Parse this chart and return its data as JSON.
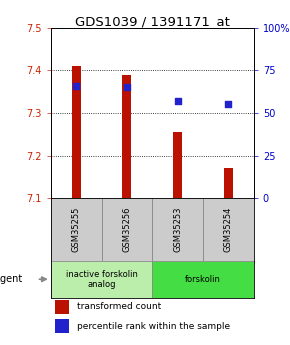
{
  "title": "GDS1039 / 1391171_at",
  "samples": [
    "GSM35255",
    "GSM35256",
    "GSM35253",
    "GSM35254"
  ],
  "bar_values": [
    7.41,
    7.39,
    7.255,
    7.17
  ],
  "bar_bottom": 7.1,
  "dot_values": [
    66,
    65,
    57,
    55
  ],
  "ylim_left": [
    7.1,
    7.5
  ],
  "ylim_right": [
    0,
    100
  ],
  "yticks_left": [
    7.1,
    7.2,
    7.3,
    7.4,
    7.5
  ],
  "yticks_right": [
    0,
    25,
    50,
    75,
    100
  ],
  "bar_color": "#bb1100",
  "dot_color": "#2222cc",
  "agent_groups": [
    {
      "label": "inactive forskolin\nanalog",
      "samples": [
        0,
        1
      ],
      "color": "#bbeeaa"
    },
    {
      "label": "forskolin",
      "samples": [
        2,
        3
      ],
      "color": "#44dd44"
    }
  ],
  "legend_bar_label": "transformed count",
  "legend_dot_label": "percentile rank within the sample",
  "agent_label": "agent",
  "bg_color": "#ffffff",
  "tick_color_left": "#cc2200",
  "tick_color_right": "#0000cc",
  "title_fontsize": 9.5,
  "axis_fontsize": 7,
  "legend_fontsize": 6.5,
  "sample_box_color": "#cccccc",
  "grid_yticks": [
    7.2,
    7.3,
    7.4
  ]
}
